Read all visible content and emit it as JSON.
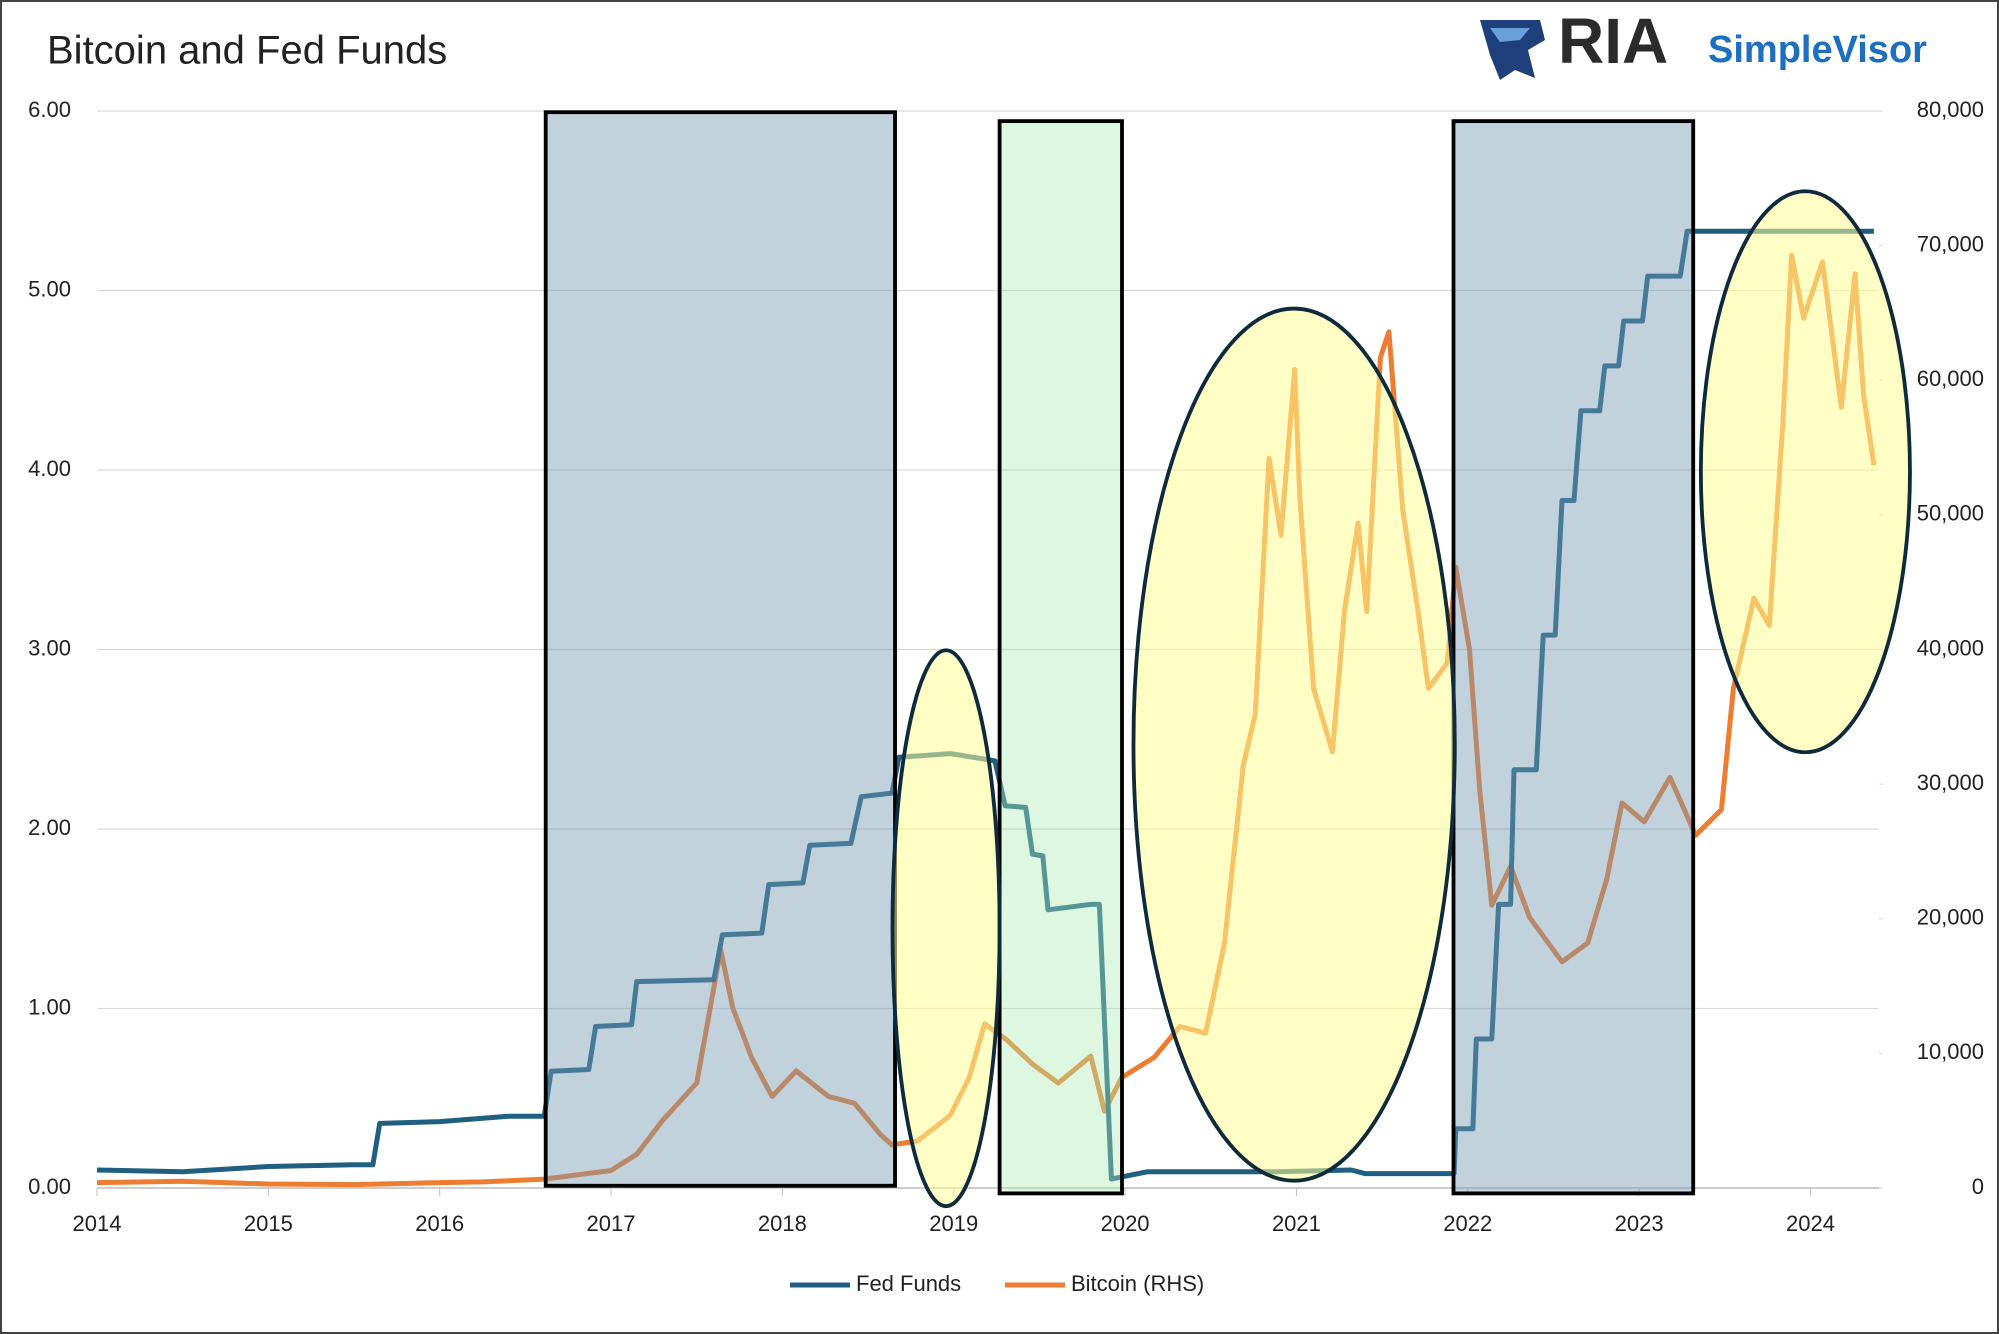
{
  "logo": {
    "name": "RIA",
    "product": "SimpleVisor"
  },
  "chart_data": {
    "type": "line",
    "title": "Bitcoin and Fed Funds",
    "xlim": [
      2014,
      2024.4
    ],
    "xticks": [
      2014,
      2015,
      2016,
      2017,
      2018,
      2019,
      2020,
      2021,
      2022,
      2023,
      2024
    ],
    "ylim": [
      0,
      6
    ],
    "yticks": [
      {
        "value": 0,
        "label": "0.00"
      },
      {
        "value": 1,
        "label": "1.00"
      },
      {
        "value": 2,
        "label": "2.00"
      },
      {
        "value": 3,
        "label": "3.00"
      },
      {
        "value": 4,
        "label": "4.00"
      },
      {
        "value": 5,
        "label": "5.00"
      },
      {
        "value": 6,
        "label": "6.00"
      }
    ],
    "y2lim": [
      0,
      80000
    ],
    "y2ticks": [
      0,
      {
        "value": 10000,
        "label": "10,000"
      },
      {
        "value": 20000,
        "label": "20,000"
      },
      {
        "value": 30000,
        "label": "30,000"
      },
      {
        "value": 40000,
        "label": "40,000"
      },
      {
        "value": 50000,
        "label": "50,000"
      },
      {
        "value": 60000,
        "label": "60,000"
      },
      {
        "value": 70000,
        "label": "70,000"
      },
      {
        "value": 80000,
        "label": "80,000"
      }
    ],
    "grid": true,
    "legend": "bottom",
    "series": [
      {
        "name": "Fed Funds",
        "color": "#1f5f80",
        "x": [
          2014.0,
          2014.5,
          2015.0,
          2015.5,
          2015.61,
          2015.65,
          2016.0,
          2016.4,
          2016.61,
          2016.65,
          2016.87,
          2016.91,
          2017.12,
          2017.15,
          2017.6,
          2017.65,
          2017.88,
          2017.92,
          2018.12,
          2018.16,
          2018.4,
          2018.46,
          2018.64,
          2018.68,
          2018.98,
          2019.24,
          2019.3,
          2019.42,
          2019.46,
          2019.52,
          2019.55,
          2019.8,
          2019.85,
          2019.92,
          2020.13,
          2020.88,
          2021.32,
          2021.4,
          2021.92,
          2021.93,
          2022.03,
          2022.05,
          2022.14,
          2022.18,
          2022.25,
          2022.27,
          2022.4,
          2022.44,
          2022.51,
          2022.55,
          2022.62,
          2022.66,
          2022.77,
          2022.8,
          2022.88,
          2022.91,
          2023.02,
          2023.05,
          2023.24,
          2023.28,
          2024.37
        ],
        "values": [
          0.1,
          0.09,
          0.12,
          0.13,
          0.13,
          0.36,
          0.37,
          0.4,
          0.4,
          0.65,
          0.66,
          0.9,
          0.91,
          1.15,
          1.16,
          1.41,
          1.42,
          1.69,
          1.7,
          1.91,
          1.92,
          2.18,
          2.2,
          2.4,
          2.42,
          2.38,
          2.13,
          2.12,
          1.86,
          1.85,
          1.55,
          1.58,
          1.58,
          0.05,
          0.09,
          0.09,
          0.1,
          0.08,
          0.08,
          0.33,
          0.33,
          0.83,
          0.83,
          1.58,
          1.58,
          2.33,
          2.33,
          3.08,
          3.08,
          3.83,
          3.83,
          4.33,
          4.33,
          4.58,
          4.58,
          4.83,
          4.83,
          5.08,
          5.08,
          5.33,
          5.33
        ]
      },
      {
        "name": "Bitcoin (RHS)",
        "color": "#ed7d31",
        "axis": "y2",
        "x": [
          2014.0,
          2014.5,
          2015.0,
          2015.5,
          2016.0,
          2016.25,
          2016.61,
          2017.0,
          2017.15,
          2017.3,
          2017.5,
          2017.64,
          2017.71,
          2017.82,
          2017.94,
          2018.08,
          2018.27,
          2018.42,
          2018.57,
          2018.64,
          2018.79,
          2018.98,
          2019.09,
          2019.18,
          2019.31,
          2019.46,
          2019.61,
          2019.8,
          2019.88,
          2019.98,
          2020.17,
          2020.32,
          2020.47,
          2020.58,
          2020.69,
          2020.76,
          2020.84,
          2020.91,
          2020.99,
          2021.02,
          2021.1,
          2021.21,
          2021.28,
          2021.36,
          2021.41,
          2021.49,
          2021.54,
          2021.62,
          2021.71,
          2021.77,
          2021.88,
          2021.93,
          2022.01,
          2022.07,
          2022.14,
          2022.25,
          2022.36,
          2022.55,
          2022.7,
          2022.81,
          2022.9,
          2023.03,
          2023.18,
          2023.33,
          2023.48,
          2023.55,
          2023.67,
          2023.76,
          2023.84,
          2023.89,
          2023.96,
          2024.07,
          2024.18,
          2024.26,
          2024.31,
          2024.37
        ],
        "values": [
          400,
          500,
          300,
          250,
          400,
          450,
          660,
          1300,
          2500,
          5000,
          7800,
          17700,
          13400,
          9700,
          6800,
          8700,
          6800,
          6300,
          4000,
          3200,
          3500,
          5400,
          8200,
          12200,
          11000,
          9200,
          7800,
          9800,
          5700,
          8200,
          9700,
          12000,
          11500,
          18200,
          31400,
          35200,
          54200,
          48500,
          60800,
          51300,
          37100,
          32400,
          42800,
          49400,
          42800,
          61700,
          63600,
          50400,
          42800,
          37100,
          39000,
          46100,
          40000,
          29500,
          21000,
          23900,
          20100,
          16800,
          18200,
          22900,
          28600,
          27200,
          30500,
          26200,
          28100,
          37100,
          43800,
          41800,
          57000,
          69300,
          64600,
          68800,
          58000,
          67900,
          58900,
          53700
        ]
      }
    ]
  }
}
